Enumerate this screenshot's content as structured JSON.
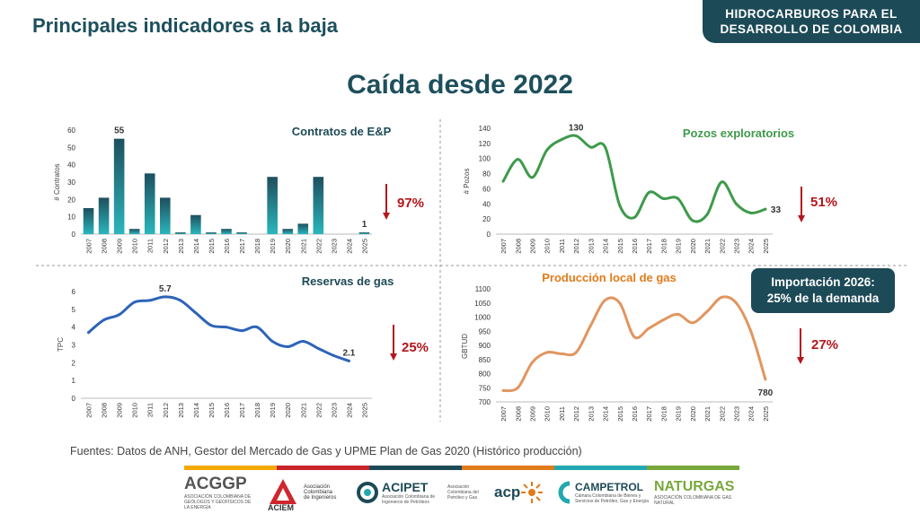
{
  "header": {
    "title": "Principales indicadores a la baja",
    "brand_line1": "HIDROCARBUROS PARA EL",
    "brand_line2": "DESARROLLO DE COLOMBIA"
  },
  "main_title": "Caída desde 2022",
  "import_note": {
    "line1": "Importación 2026:",
    "line2": "25%  de la demanda"
  },
  "sources": "Fuentes: Datos de ANH, Gestor del Mercado de Gas y UPME Plan de Gas 2020 (Histórico producción)",
  "color_bar": [
    "#f2a900",
    "#c8242b",
    "#1d4a57",
    "#e07b1a",
    "#22a8b0",
    "#78a83c"
  ],
  "logos": {
    "acggp": {
      "name": "ACGGP",
      "sub": "ASOCIACIÓN COLOMBIANA DE GEÓLOGOS Y GEOFÍSICOS DE LA ENERGÍA"
    },
    "aciem": {
      "name": "ACIEM",
      "sub1": "Asociación",
      "sub2": "Colombiana",
      "sub3": "de Ingenieros"
    },
    "acipet": {
      "name": "ACIPET",
      "sub": "Asociación Colombiana de Ingenieros de Petróleos"
    },
    "acp": {
      "name": "acp",
      "sub": "Asociación Colombiana del Petróleo y Gas"
    },
    "campetrol": {
      "name": "CAMPETROL",
      "sub": "Cámara Colombiana de Bienes y Servicios de Petróleo, Gas y Energía"
    },
    "naturgas": {
      "name": "NATURGAS",
      "sub": "ASOCIACIÓN COLOMBIANA DE GAS NATURAL"
    }
  },
  "chart_data": [
    {
      "type": "bar",
      "title": "Contratos de E&P",
      "ylabel": "# Contratos",
      "ylim": [
        0,
        60
      ],
      "yticks": [
        0,
        10,
        20,
        30,
        40,
        50,
        60
      ],
      "categories": [
        "2007",
        "2008",
        "2009",
        "2010",
        "2011",
        "2012",
        "2013",
        "2014",
        "2015",
        "2016",
        "2017",
        "2018",
        "2019",
        "2020",
        "2021",
        "2022",
        "2023",
        "2024",
        "2025"
      ],
      "values": [
        15,
        21,
        55,
        3,
        35,
        21,
        1,
        11,
        1,
        3,
        1,
        0,
        33,
        3,
        6,
        33,
        0,
        0,
        1
      ],
      "data_labels": [
        {
          "index": 2,
          "text": "55"
        },
        {
          "index": 18,
          "text": "1"
        }
      ],
      "change": "97%"
    },
    {
      "type": "line",
      "title": "Pozos exploratorios",
      "ylabel": "# Pozos",
      "ylim": [
        0,
        140
      ],
      "yticks": [
        0,
        20,
        40,
        60,
        80,
        100,
        120,
        140
      ],
      "categories": [
        "2007",
        "2008",
        "2009",
        "2010",
        "2011",
        "2012",
        "2013",
        "2014",
        "2015",
        "2016",
        "2017",
        "2018",
        "2019",
        "2020",
        "2021",
        "2022",
        "2023",
        "2024",
        "2025"
      ],
      "values": [
        70,
        99,
        75,
        111,
        125,
        130,
        115,
        115,
        38,
        22,
        55,
        47,
        47,
        18,
        26,
        69,
        40,
        28,
        33
      ],
      "color": "#3f9a4b",
      "data_labels": [
        {
          "index": 5,
          "text": "130"
        },
        {
          "index": 18,
          "text": "33"
        }
      ],
      "change": "51%"
    },
    {
      "type": "line",
      "title": "Reservas de gas",
      "ylabel": "TPC",
      "ylim": [
        0,
        6
      ],
      "yticks": [
        0,
        1,
        2,
        3,
        4,
        5,
        6
      ],
      "categories": [
        "2007",
        "2008",
        "2009",
        "2010",
        "2011",
        "2012",
        "2013",
        "2014",
        "2015",
        "2016",
        "2017",
        "2018",
        "2019",
        "2020",
        "2021",
        "2022",
        "2023",
        "2024",
        "2025"
      ],
      "values": [
        3.7,
        4.4,
        4.7,
        5.4,
        5.5,
        5.7,
        5.5,
        4.8,
        4.1,
        4.0,
        3.8,
        4.0,
        3.2,
        2.9,
        3.2,
        2.8,
        2.4,
        2.1,
        null
      ],
      "color": "#2e64b8",
      "data_labels": [
        {
          "index": 5,
          "text": "5.7"
        },
        {
          "index": 17,
          "text": "2.1"
        }
      ],
      "change": "25%"
    },
    {
      "type": "line",
      "title": "Producción local de gas",
      "ylabel": "GBTUD",
      "ylim": [
        700,
        1100
      ],
      "yticks": [
        700,
        750,
        800,
        850,
        900,
        950,
        1000,
        1050,
        1100
      ],
      "categories": [
        "2007",
        "2008",
        "2009",
        "2010",
        "2011",
        "2012",
        "2013",
        "2014",
        "2015",
        "2016",
        "2017",
        "2018",
        "2019",
        "2020",
        "2021",
        "2022",
        "2023",
        "2024",
        "2025"
      ],
      "values": [
        740,
        750,
        840,
        875,
        870,
        875,
        970,
        1060,
        1050,
        930,
        960,
        990,
        1010,
        980,
        1020,
        1070,
        1050,
        950,
        780
      ],
      "color": "#e2955f",
      "data_labels": [
        {
          "index": 18,
          "text": "780"
        }
      ],
      "change": "27%"
    }
  ]
}
